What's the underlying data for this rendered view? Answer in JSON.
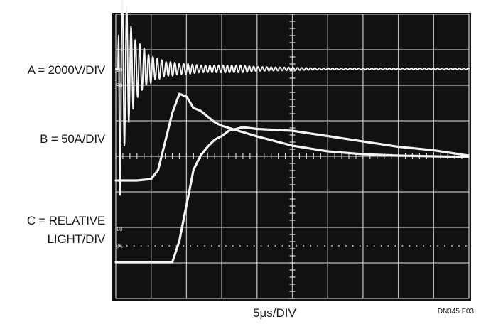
{
  "labels": {
    "channel_a": "A = 2000V/DIV",
    "channel_b": "B = 50A/DIV",
    "channel_c_line1": "C =  RELATIVE",
    "channel_c_line2": "LIGHT/DIV",
    "x_axis": "5µs/DIV",
    "figure_id": "DN345 F03"
  },
  "screen_marks": {
    "ch_a_ref_top": "10",
    "ch_a_ref_bottom": "90",
    "ch_c_ref_top": "10",
    "ch_c_ref_bottom": "0%"
  },
  "colors": {
    "screen": "#111111",
    "grid": "#d8d8d8",
    "trace": "#f4f4f4"
  },
  "chart_data": {
    "type": "line",
    "title": "",
    "xlabel": "5µs/DIV",
    "x_unit": "µs",
    "xlim": [
      0,
      50
    ],
    "grid": {
      "divisions_x": 10,
      "divisions_y": 8
    },
    "series": [
      {
        "name": "A = 2000V/DIV",
        "unit": "V",
        "x": [
          0,
          0.2,
          0.5,
          0.8,
          1.1,
          1.4,
          1.7,
          2.0,
          2.4,
          2.8,
          3.2,
          3.6,
          4.0,
          4.5,
          5.0,
          5.5,
          6.0,
          7,
          8,
          9,
          10,
          12,
          14,
          16,
          18,
          20,
          25,
          30,
          35,
          40,
          45,
          50
        ],
        "y": [
          0,
          0,
          8000,
          -5400,
          5000,
          -3600,
          3600,
          -2400,
          2400,
          -1600,
          1600,
          -1200,
          1200,
          -800,
          800,
          -600,
          600,
          -400,
          400,
          -300,
          300,
          -200,
          200,
          -200,
          200,
          120,
          80,
          40,
          40,
          0,
          0,
          0
        ]
      },
      {
        "name": "B = 50A/DIV",
        "unit": "A",
        "x": [
          0,
          3,
          5,
          6,
          7,
          8,
          9,
          10,
          11,
          12,
          13,
          14,
          15,
          17,
          20,
          25,
          30,
          35,
          40,
          45,
          50
        ],
        "y": [
          0,
          0,
          2,
          15,
          55,
          95,
          122,
          118,
          102,
          98,
          90,
          82,
          77,
          71,
          62,
          49,
          41,
          37,
          35,
          34,
          33
        ]
      },
      {
        "name": "C = RELATIVE LIGHT/DIV",
        "unit": "relative",
        "x": [
          0,
          5,
          8,
          9,
          10,
          11,
          12,
          13,
          14,
          15,
          16,
          17,
          18,
          20,
          25,
          30,
          35,
          40,
          45,
          50
        ],
        "y": [
          0,
          0,
          0,
          0.6,
          1.6,
          2.6,
          3.0,
          3.25,
          3.45,
          3.55,
          3.7,
          3.75,
          3.8,
          3.75,
          3.7,
          3.55,
          3.4,
          3.25,
          3.15,
          3.0
        ]
      }
    ]
  }
}
